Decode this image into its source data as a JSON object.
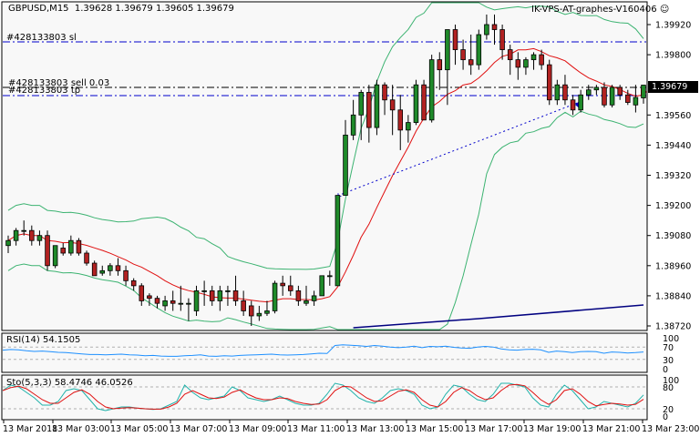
{
  "header": {
    "symbol_info": "GBPUSD,M15  1.39628 1.39679 1.39605 1.39679",
    "expert_name": "IK-VPS-AT-graphes-V160406",
    "expert_icon": "smiley-icon"
  },
  "colors": {
    "background": "#f8f8f8",
    "frame": "#000000",
    "bull_body": "#1f8a2a",
    "bear_body": "#b22222",
    "bollinger": "#3cb371",
    "ma_red": "#e01010",
    "ma_navy": "#000080",
    "level_line": "#0000cc",
    "entry_line": "#000000",
    "rsi_line": "#1e90ff",
    "sto_main": "#20b2aa",
    "sto_signal": "#e01010",
    "price_tag_bg": "#000000",
    "price_tag_fg": "#ffffff",
    "grid_dash": "#b0b0b0"
  },
  "trade_levels": [
    {
      "label": "#428133803 sl",
      "price": 1.3989,
      "style": "dashdot",
      "color": "#0000cc"
    },
    {
      "label": "#428133803 sell 0.03",
      "price": 1.39688,
      "style": "dashdot",
      "color": "#000000"
    },
    {
      "label": "#428133803 tp",
      "price": 1.39645,
      "style": "dashdot",
      "color": "#0000cc"
    }
  ],
  "current_price": "1.39679",
  "chart_data": [
    {
      "type": "candlestick",
      "title": "GBPUSD,M15",
      "ohlc_header": {
        "open": 1.39628,
        "high": 1.39679,
        "low": 1.39605,
        "close": 1.39679
      },
      "ylim": [
        1.387,
        1.4006
      ],
      "y_ticks": [
        "1.39920",
        "1.39800",
        "1.39679",
        "1.39560",
        "1.39440",
        "1.39320",
        "1.39200",
        "1.39080",
        "1.38960",
        "1.38840",
        "1.38720"
      ],
      "x_ticks": [
        "13 Mar 2018",
        "13 Mar 03:00",
        "13 Mar 05:00",
        "13 Mar 07:00",
        "13 Mar 09:00",
        "13 Mar 11:00",
        "13 Mar 13:00",
        "13 Mar 15:00",
        "13 Mar 17:00",
        "13 Mar 19:00",
        "13 Mar 21:00",
        "13 Mar 23:00"
      ],
      "overlays": [
        "Bollinger Bands (upper/lower, green)",
        "Moving Average (red)",
        "Moving Average (navy, long)",
        "Trade arrow line (blue dotted)"
      ],
      "candles": [
        [
          1.3904,
          1.3908,
          1.3901,
          1.3906
        ],
        [
          1.3906,
          1.3911,
          1.3904,
          1.391
        ],
        [
          1.391,
          1.3914,
          1.3908,
          1.391
        ],
        [
          1.391,
          1.3912,
          1.3904,
          1.3906
        ],
        [
          1.3906,
          1.391,
          1.3904,
          1.3908
        ],
        [
          1.3908,
          1.391,
          1.3894,
          1.3896
        ],
        [
          1.3896,
          1.3904,
          1.3895,
          1.3904
        ],
        [
          1.3903,
          1.3905,
          1.39,
          1.3901
        ],
        [
          1.3901,
          1.3908,
          1.39,
          1.3906
        ],
        [
          1.3906,
          1.3907,
          1.39,
          1.3901
        ],
        [
          1.3901,
          1.3902,
          1.3896,
          1.3897
        ],
        [
          1.3897,
          1.3898,
          1.3893,
          1.3892
        ],
        [
          1.3893,
          1.3896,
          1.3892,
          1.3894
        ],
        [
          1.3894,
          1.3897,
          1.3892,
          1.3896
        ],
        [
          1.3896,
          1.3899,
          1.3892,
          1.3894
        ],
        [
          1.3894,
          1.3896,
          1.3888,
          1.389
        ],
        [
          1.389,
          1.3891,
          1.3886,
          1.3888
        ],
        [
          1.3888,
          1.3889,
          1.388,
          1.3882
        ],
        [
          1.3884,
          1.3885,
          1.388,
          1.3883
        ],
        [
          1.3883,
          1.3884,
          1.3879,
          1.3881
        ],
        [
          1.388,
          1.3884,
          1.3878,
          1.3882
        ],
        [
          1.3882,
          1.3886,
          1.3878,
          1.3881
        ],
        [
          1.3881,
          1.3888,
          1.3878,
          1.3881
        ],
        [
          1.3881,
          1.3883,
          1.3874,
          1.3881
        ],
        [
          1.3878,
          1.3888,
          1.3876,
          1.3886
        ],
        [
          1.3886,
          1.389,
          1.388,
          1.3886
        ],
        [
          1.3886,
          1.3888,
          1.388,
          1.3882
        ],
        [
          1.3882,
          1.3888,
          1.3878,
          1.3886
        ],
        [
          1.3886,
          1.3888,
          1.388,
          1.3886
        ],
        [
          1.3886,
          1.3892,
          1.388,
          1.3882
        ],
        [
          1.3882,
          1.3886,
          1.3876,
          1.3878
        ],
        [
          1.388,
          1.3882,
          1.3872,
          1.3876
        ],
        [
          1.3876,
          1.388,
          1.3874,
          1.3877
        ],
        [
          1.3877,
          1.3882,
          1.3876,
          1.3878
        ],
        [
          1.3878,
          1.389,
          1.3877,
          1.3889
        ],
        [
          1.3889,
          1.3892,
          1.3884,
          1.3888
        ],
        [
          1.3888,
          1.3892,
          1.3884,
          1.3886
        ],
        [
          1.3886,
          1.3888,
          1.388,
          1.3882
        ],
        [
          1.3881,
          1.3888,
          1.388,
          1.3882
        ],
        [
          1.3882,
          1.3886,
          1.388,
          1.3884
        ],
        [
          1.3884,
          1.3892,
          1.3884,
          1.3892
        ],
        [
          1.3892,
          1.3894,
          1.3888,
          1.3892
        ],
        [
          1.3888,
          1.3906,
          1.3888,
          1.3924
        ],
        [
          1.3924,
          1.3954,
          1.3924,
          1.3948
        ],
        [
          1.3948,
          1.3962,
          1.3946,
          1.3956
        ],
        [
          1.3956,
          1.3966,
          1.3946,
          1.3965
        ],
        [
          1.3965,
          1.3968,
          1.3945,
          1.3951
        ],
        [
          1.3951,
          1.397,
          1.3948,
          1.3968
        ],
        [
          1.3968,
          1.3969,
          1.3956,
          1.3962
        ],
        [
          1.3962,
          1.3968,
          1.3948,
          1.3958
        ],
        [
          1.3958,
          1.3964,
          1.3942,
          1.395
        ],
        [
          1.395,
          1.3956,
          1.3945,
          1.3953
        ],
        [
          1.3953,
          1.397,
          1.3952,
          1.3968
        ],
        [
          1.3968,
          1.397,
          1.3954,
          1.3954
        ],
        [
          1.3954,
          1.398,
          1.3953,
          1.3978
        ],
        [
          1.3978,
          1.3981,
          1.3966,
          1.3974
        ],
        [
          1.3974,
          1.3988,
          1.396,
          1.399
        ],
        [
          1.399,
          1.3992,
          1.3976,
          1.3982
        ],
        [
          1.3982,
          1.3986,
          1.3974,
          1.3978
        ],
        [
          1.3978,
          1.3988,
          1.3972,
          1.3976
        ],
        [
          1.3976,
          1.399,
          1.3974,
          1.3988
        ],
        [
          1.3988,
          1.3996,
          1.3986,
          1.3992
        ],
        [
          1.3992,
          1.3996,
          1.3984,
          1.399
        ],
        [
          1.399,
          1.3992,
          1.3978,
          1.3982
        ],
        [
          1.3982,
          1.3984,
          1.3972,
          1.3978
        ],
        [
          1.3978,
          1.3981,
          1.397,
          1.3975
        ],
        [
          1.3975,
          1.3979,
          1.3972,
          1.3978
        ],
        [
          1.3978,
          1.3981,
          1.3974,
          1.398
        ],
        [
          1.398,
          1.3982,
          1.3974,
          1.3976
        ],
        [
          1.3976,
          1.3978,
          1.396,
          1.3962
        ],
        [
          1.3962,
          1.397,
          1.396,
          1.3968
        ],
        [
          1.3968,
          1.3972,
          1.396,
          1.3962
        ],
        [
          1.3962,
          1.3964,
          1.3956,
          1.3958
        ],
        [
          1.3958,
          1.3966,
          1.3957,
          1.3964
        ],
        [
          1.3964,
          1.3968,
          1.3962,
          1.3966
        ],
        [
          1.3966,
          1.3968,
          1.3964,
          1.3967
        ],
        [
          1.3967,
          1.3969,
          1.3959,
          1.396
        ],
        [
          1.396,
          1.3968,
          1.3959,
          1.3967
        ],
        [
          1.3967,
          1.3968,
          1.3962,
          1.3964
        ],
        [
          1.3964,
          1.3966,
          1.396,
          1.3961
        ],
        [
          1.396,
          1.3968,
          1.3957,
          1.3963
        ],
        [
          1.39628,
          1.39679,
          1.39605,
          1.39679
        ]
      ]
    },
    {
      "type": "line",
      "title": "RSI(14) 54.1505",
      "indicator": "RSI",
      "period": 14,
      "last_value": 54.1505,
      "ylim": [
        0,
        100
      ],
      "levels": [
        70,
        30
      ],
      "y_ticks": [
        "100",
        "70",
        "30",
        "0"
      ],
      "values": [
        60,
        62,
        61,
        58,
        56,
        57,
        55,
        53,
        52,
        50,
        48,
        46,
        46,
        45,
        46,
        47,
        45,
        44,
        42,
        43,
        41,
        40,
        40,
        42,
        43,
        45,
        41,
        40,
        42,
        41,
        43,
        44,
        45,
        46,
        47,
        45,
        44,
        45,
        46,
        48,
        50,
        49,
        75,
        77,
        76,
        74,
        72,
        75,
        73,
        70,
        68,
        70,
        73,
        68,
        72,
        71,
        73,
        69,
        67,
        66,
        70,
        72,
        70,
        64,
        61,
        60,
        62,
        63,
        61,
        53,
        57,
        55,
        52,
        55,
        56,
        55,
        50,
        54,
        53,
        51,
        52,
        54
      ]
    },
    {
      "type": "line",
      "title": "Sto(5,3,3) 58.4746 46.0526",
      "indicator": "Stochastic",
      "params": "5,3,3",
      "main_last": 58.4746,
      "signal_last": 46.0526,
      "ylim": [
        0,
        100
      ],
      "levels": [
        80,
        20
      ],
      "y_ticks": [
        "100",
        "80",
        "20",
        "0"
      ],
      "series": [
        {
          "name": "Main",
          "color": "#20b2aa",
          "values": [
            70,
            85,
            80,
            65,
            50,
            30,
            30,
            40,
            70,
            75,
            70,
            45,
            20,
            15,
            20,
            25,
            25,
            22,
            20,
            18,
            20,
            30,
            40,
            85,
            65,
            50,
            45,
            50,
            55,
            80,
            70,
            50,
            45,
            40,
            45,
            55,
            45,
            35,
            30,
            30,
            35,
            60,
            90,
            85,
            70,
            50,
            40,
            35,
            50,
            70,
            75,
            70,
            60,
            30,
            20,
            25,
            60,
            85,
            80,
            60,
            45,
            40,
            60,
            90,
            90,
            85,
            80,
            50,
            30,
            25,
            60,
            85,
            70,
            45,
            20,
            25,
            40,
            35,
            30,
            25,
            35,
            58
          ]
        },
        {
          "name": "Signal",
          "color": "#e01010",
          "values": [
            70,
            78,
            82,
            75,
            60,
            45,
            35,
            35,
            50,
            65,
            72,
            60,
            40,
            25,
            20,
            22,
            23,
            22,
            20,
            19,
            19,
            25,
            35,
            60,
            70,
            60,
            50,
            48,
            52,
            65,
            72,
            60,
            50,
            45,
            45,
            50,
            48,
            40,
            35,
            32,
            33,
            45,
            70,
            82,
            80,
            65,
            50,
            40,
            42,
            55,
            68,
            72,
            65,
            45,
            30,
            25,
            40,
            65,
            78,
            70,
            55,
            45,
            50,
            70,
            85,
            87,
            83,
            65,
            45,
            32,
            45,
            70,
            75,
            60,
            40,
            28,
            32,
            35,
            33,
            30,
            32,
            46
          ]
        }
      ]
    }
  ],
  "panes": {
    "rsi_label": "RSI(14) 54.1505",
    "sto_label": "Sto(5,3,3) 58.4746 46.0526"
  }
}
